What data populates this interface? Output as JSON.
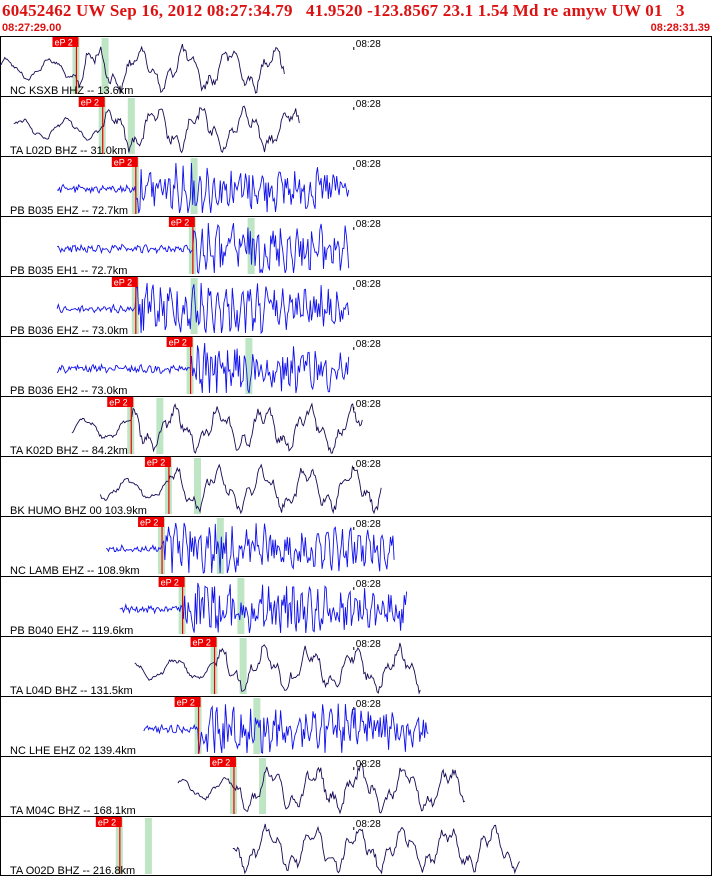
{
  "header": {
    "title": "60452462 UW Sep 16, 2012 08:27:34.79   41.9520 -123.8567 23.1 1.54 Md re amyw UW 01   3",
    "time_start": "08:27:29.00",
    "time_end": "08:28:31.39"
  },
  "chart_data": {
    "type": "line",
    "description_free": true,
    "time_window": [
      "08:27:29.00",
      "08:28:31.39"
    ],
    "minute_marker_label": "08:28",
    "pick_label": "eP 2",
    "colors": {
      "header": "#dd1111",
      "pick": "#ee0000",
      "broadband": "#1a0a55",
      "short_period": "#1010ee",
      "window": "#bfe6c4",
      "frame": "#000000"
    },
    "traces": [
      {
        "station": "NC KSXB HHZ -- 13.6km",
        "network": "NC",
        "code": "KSXB",
        "channel": "HHZ",
        "distance_km": 13.6,
        "kind": "broadband",
        "start_s": 0.0,
        "end_s": 25.0,
        "pick_s": 6.7
      },
      {
        "station": "TA L02D BHZ -- 31.0km",
        "network": "TA",
        "code": "L02D",
        "channel": "BHZ",
        "distance_km": 31.0,
        "kind": "broadband",
        "start_s": 1.2,
        "end_s": 26.3,
        "pick_s": 9.0
      },
      {
        "station": "PB B035 EHZ -- 72.7km",
        "network": "PB",
        "code": "B035",
        "channel": "EHZ",
        "distance_km": 72.7,
        "kind": "short_period",
        "start_s": 5.0,
        "end_s": 30.6,
        "pick_s": 11.9
      },
      {
        "station": "PB B035 EH1 -- 72.7km",
        "network": "PB",
        "code": "B035",
        "channel": "EH1",
        "distance_km": 72.7,
        "kind": "short_period",
        "start_s": 5.0,
        "end_s": 30.6,
        "pick_s": 16.9
      },
      {
        "station": "PB B036 EHZ -- 73.0km",
        "network": "PB",
        "code": "B036",
        "channel": "EHZ",
        "distance_km": 73.0,
        "kind": "short_period",
        "start_s": 5.0,
        "end_s": 30.6,
        "pick_s": 11.9
      },
      {
        "station": "PB B036 EH2 -- 73.0km",
        "network": "PB",
        "code": "B036",
        "channel": "EH2",
        "distance_km": 73.0,
        "kind": "short_period",
        "start_s": 5.0,
        "end_s": 30.6,
        "pick_s": 16.7
      },
      {
        "station": "TA K02D BHZ -- 84.2km",
        "network": "TA",
        "code": "K02D",
        "channel": "BHZ",
        "distance_km": 84.2,
        "kind": "broadband",
        "start_s": 6.3,
        "end_s": 31.8,
        "pick_s": 11.5
      },
      {
        "station": "BK HUMO BHZ 00 103.9km",
        "network": "BK",
        "code": "HUMO",
        "channel": "BHZ 00",
        "distance_km": 103.9,
        "kind": "broadband",
        "start_s": 8.8,
        "end_s": 33.5,
        "pick_s": 14.8
      },
      {
        "station": "NC LAMB EHZ -- 108.9km",
        "network": "NC",
        "code": "LAMB",
        "channel": "EHZ",
        "distance_km": 108.9,
        "kind": "short_period",
        "start_s": 9.3,
        "end_s": 34.6,
        "pick_s": 14.2
      },
      {
        "station": "PB B040 EHZ -- 119.6km",
        "network": "PB",
        "code": "B040",
        "channel": "EHZ",
        "distance_km": 119.6,
        "kind": "short_period",
        "start_s": 10.5,
        "end_s": 35.7,
        "pick_s": 16.0
      },
      {
        "station": "TA L04D BHZ -- 131.5km",
        "network": "TA",
        "code": "L04D",
        "channel": "BHZ",
        "distance_km": 131.5,
        "kind": "broadband",
        "start_s": 11.8,
        "end_s": 36.9,
        "pick_s": 18.8
      },
      {
        "station": "NC LHE EHZ 02 139.4km",
        "network": "NC",
        "code": "LHE",
        "channel": "EHZ 02",
        "distance_km": 139.4,
        "kind": "short_period",
        "start_s": 12.6,
        "end_s": 37.6,
        "pick_s": 17.4
      },
      {
        "station": "TA M04C BHZ -- 168.1km",
        "network": "TA",
        "code": "M04C",
        "channel": "BHZ",
        "distance_km": 168.1,
        "kind": "broadband",
        "start_s": 15.6,
        "end_s": 40.8,
        "pick_s": 20.5
      },
      {
        "station": "TA O02D BHZ -- 216.8km",
        "network": "TA",
        "code": "O02D",
        "channel": "BHZ",
        "distance_km": 216.8,
        "kind": "broadband",
        "start_s": 20.4,
        "end_s": 45.6,
        "pick_s": 10.5
      }
    ]
  }
}
